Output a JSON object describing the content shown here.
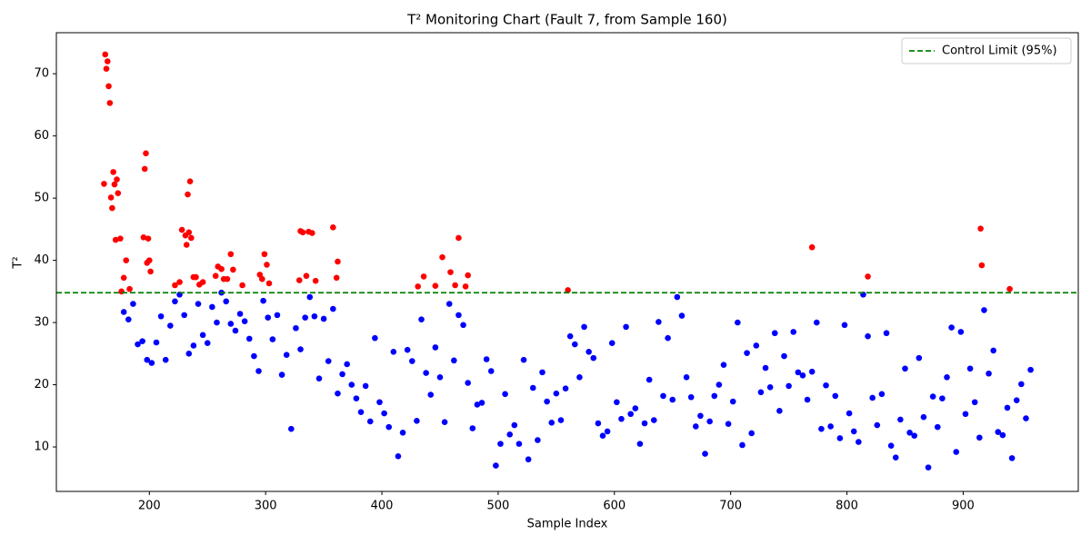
{
  "chart_data": {
    "type": "scatter",
    "title": "T² Monitoring Chart (Fault 7, from Sample 160)",
    "x_label": "Sample Index",
    "y_label": "T²",
    "xlim": [
      120,
      999
    ],
    "ylim": [
      2.85,
      76.6
    ],
    "xticks": [
      200,
      300,
      400,
      500,
      600,
      700,
      800,
      900
    ],
    "yticks": [
      10,
      20,
      30,
      40,
      50,
      60,
      70
    ],
    "legend_position": "upper right",
    "control_limit": {
      "label": "Control Limit (95%)",
      "value": 34.8,
      "color": "#008000"
    },
    "series": [
      {
        "color": "#0000ff",
        "x": [
          178,
          182,
          186,
          190,
          194,
          198,
          202,
          206,
          210,
          214,
          218,
          222,
          226,
          230,
          234,
          238,
          242,
          246,
          250,
          254,
          258,
          262,
          266,
          270,
          274,
          278,
          282,
          286,
          290,
          294,
          298,
          302,
          306,
          310,
          314,
          318,
          322,
          326,
          330,
          334,
          338,
          342,
          346,
          350,
          354,
          358,
          362,
          366,
          370,
          374,
          378,
          382,
          386,
          390,
          394,
          398,
          402,
          406,
          410,
          414,
          418,
          422,
          426,
          430,
          434,
          438,
          442,
          446,
          450,
          454,
          458,
          462,
          466,
          470,
          474,
          478,
          482,
          486,
          490,
          494,
          498,
          502,
          506,
          510,
          514,
          518,
          522,
          526,
          530,
          534,
          538,
          542,
          546,
          550,
          554,
          558,
          562,
          566,
          570,
          574,
          578,
          582,
          586,
          590,
          594,
          598,
          602,
          606,
          610,
          614,
          618,
          622,
          626,
          630,
          634,
          638,
          642,
          646,
          650,
          654,
          658,
          662,
          666,
          670,
          674,
          678,
          682,
          686,
          690,
          694,
          698,
          702,
          706,
          710,
          714,
          718,
          722,
          726,
          730,
          734,
          738,
          742,
          746,
          750,
          754,
          758,
          762,
          766,
          770,
          774,
          778,
          782,
          786,
          790,
          794,
          798,
          802,
          806,
          810,
          814,
          818,
          822,
          826,
          830,
          834,
          838,
          842,
          846,
          850,
          854,
          858,
          862,
          866,
          870,
          874,
          878,
          882,
          886,
          890,
          894,
          898,
          902,
          906,
          910,
          914,
          918,
          922,
          926,
          930,
          934,
          938,
          942,
          946,
          950,
          954,
          958
        ],
        "values": [
          31.7,
          30.5,
          33,
          26.5,
          27,
          24,
          23.5,
          26.8,
          31,
          24,
          29.5,
          33.4,
          34.5,
          31.2,
          25,
          26.3,
          33,
          28,
          26.7,
          32.5,
          30,
          34.8,
          33.4,
          29.8,
          28.7,
          31.4,
          30.2,
          27.4,
          24.6,
          22.2,
          33.5,
          30.8,
          27.3,
          31.2,
          21.6,
          24.8,
          12.9,
          29.1,
          25.7,
          30.8,
          34.1,
          31,
          21,
          30.6,
          23.8,
          32.2,
          18.6,
          21.7,
          23.3,
          20,
          17.8,
          15.6,
          19.8,
          14.1,
          27.5,
          17.2,
          15.4,
          13.2,
          25.3,
          8.5,
          12.3,
          25.6,
          23.8,
          14.2,
          30.5,
          21.9,
          18.4,
          26,
          21.2,
          14,
          33,
          23.9,
          31.2,
          29.6,
          20.3,
          13,
          16.8,
          17.1,
          24.1,
          22.2,
          7,
          10.5,
          18.5,
          12,
          13.5,
          10.5,
          24,
          8,
          19.5,
          11.1,
          22,
          17.3,
          13.9,
          18.6,
          14.3,
          19.4,
          27.8,
          26.5,
          21.2,
          29.3,
          25.3,
          24.3,
          13.8,
          11.8,
          12.5,
          26.7,
          17.2,
          14.5,
          29.3,
          15.3,
          16.2,
          10.5,
          13.8,
          20.8,
          14.3,
          30.1,
          18.2,
          27.5,
          17.6,
          34.1,
          31.1,
          21.2,
          18,
          13.3,
          15,
          8.9,
          14.1,
          18.2,
          20,
          23.2,
          13.7,
          17.3,
          30,
          10.3,
          25.1,
          12.2,
          26.3,
          18.8,
          22.7,
          19.6,
          28.3,
          15.8,
          24.6,
          19.8,
          28.5,
          22,
          21.5,
          17.6,
          22.1,
          30,
          12.9,
          19.9,
          13.3,
          18.2,
          11.4,
          29.6,
          15.4,
          12.5,
          10.8,
          34.5,
          27.8,
          17.9,
          13.5,
          18.5,
          28.3,
          10.2,
          8.3,
          14.4,
          22.6,
          12.3,
          11.8,
          24.3,
          14.8,
          6.7,
          18.1,
          13.2,
          17.8,
          21.2,
          29.2,
          9.2,
          28.5,
          15.3,
          22.6,
          17.2,
          11.5,
          32,
          21.8,
          25.5,
          12.4,
          11.9,
          16.3,
          8.2,
          17.5,
          20.1,
          14.6,
          22.4
        ]
      },
      {
        "color": "#ff0000",
        "x": [
          161,
          162,
          163,
          164,
          165,
          166,
          167,
          168,
          169,
          170,
          171,
          172,
          173,
          175,
          176,
          178,
          180,
          183,
          195,
          196,
          197,
          198,
          199,
          200,
          201,
          222,
          226,
          228,
          231,
          232,
          233,
          234,
          235,
          236,
          238,
          240,
          243,
          246,
          257,
          259,
          262,
          264,
          267,
          270,
          272,
          280,
          295,
          297,
          299,
          301,
          303,
          329,
          330,
          332,
          335,
          337,
          340,
          343,
          358,
          361,
          362,
          431,
          436,
          446,
          452,
          459,
          463,
          466,
          472,
          474,
          560,
          770,
          818,
          915,
          916,
          940
        ],
        "values": [
          52.3,
          73.1,
          70.8,
          72,
          68,
          65.3,
          50.1,
          48.4,
          54.2,
          52.2,
          43.3,
          53,
          50.8,
          43.5,
          35,
          37.2,
          40,
          35.4,
          43.7,
          54.7,
          57.2,
          39.6,
          43.5,
          40,
          38.2,
          36,
          36.5,
          44.9,
          44,
          42.5,
          50.6,
          44.5,
          52.7,
          43.6,
          37.3,
          37.3,
          36.1,
          36.5,
          37.5,
          39,
          38.6,
          37,
          37,
          41,
          38.5,
          36,
          37.7,
          37,
          41,
          39.3,
          36.3,
          36.8,
          44.7,
          44.5,
          37.5,
          44.6,
          44.4,
          36.7,
          45.3,
          37.2,
          39.8,
          35.8,
          37.4,
          35.9,
          40.5,
          38.1,
          36,
          43.6,
          35.8,
          37.6,
          35.2,
          42.1,
          37.4,
          45.1,
          39.2,
          35.4
        ]
      }
    ]
  }
}
